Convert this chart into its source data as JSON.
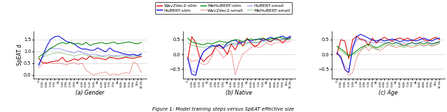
{
  "legend_entries_row1": [
    {
      "label": "Wav2Vec2-slim",
      "color": "#dd0000",
      "alpha": 1.0
    },
    {
      "label": "HuBERT-slim",
      "color": "#0000dd",
      "alpha": 1.0
    },
    {
      "label": "MeHuBERT-slim",
      "color": "#008800",
      "alpha": 1.0
    }
  ],
  "legend_entries_row2": [
    {
      "label": "Wav2Vec2-small",
      "color": "#dd0000",
      "alpha": 0.38
    },
    {
      "label": "HuBERT-small",
      "color": "#0000dd",
      "alpha": 0.38
    },
    {
      "label": "MeHuBERT-small",
      "color": "#008800",
      "alpha": 0.38
    }
  ],
  "xlabel_steps": [
    "0",
    "0.4k",
    "0.8k",
    "1.2k",
    "1.6k",
    "2k",
    "2.4k",
    "2.8k",
    "3.2k",
    "3.6k",
    "4k",
    "4.4k",
    "4.8k",
    "5.2k",
    "5.6k",
    "6k",
    "6.4k",
    "6.8k",
    "7.2k",
    "7.6k",
    "8k",
    "8.4k",
    "8.8k",
    "9.2k",
    "9.6k",
    "10k",
    "10.4k"
  ],
  "panel_titles": [
    "(a) Gender",
    "(b) Native",
    "(c) Age"
  ],
  "figure_caption": "Figure 1: Model training steps versus SpEAT effective size",
  "ylabel": "SpEAT d",
  "panels": {
    "gender": {
      "ylim": [
        -0.15,
        1.85
      ],
      "yticks": [
        0.0,
        0.5,
        1.0,
        1.5
      ],
      "series": {
        "wav2vec2_slim": [
          0.7,
          0.52,
          0.5,
          0.55,
          0.58,
          0.6,
          0.75,
          0.55,
          0.6,
          0.68,
          0.62,
          0.73,
          0.65,
          0.8,
          0.7,
          0.72,
          0.68,
          0.65,
          0.75,
          0.72,
          0.68,
          0.7,
          0.75,
          0.72,
          0.7,
          0.75,
          0.78
        ],
        "hubert_slim": [
          0.4,
          0.8,
          1.2,
          1.5,
          1.62,
          1.65,
          1.55,
          1.42,
          1.38,
          1.32,
          1.18,
          1.1,
          1.1,
          1.05,
          1.05,
          1.15,
          1.05,
          0.98,
          1.15,
          1.02,
          0.98,
          0.92,
          0.88,
          0.85,
          0.88,
          0.82,
          0.9
        ],
        "mehubert_slim": [
          0.75,
          0.88,
          1.0,
          1.12,
          1.22,
          1.32,
          1.38,
          1.32,
          1.38,
          1.3,
          1.35,
          1.28,
          1.38,
          1.25,
          1.32,
          1.35,
          1.38,
          1.32,
          1.35,
          1.4,
          1.32,
          1.35,
          1.38,
          1.4,
          1.35,
          1.32,
          1.38
        ],
        "wav2vec2_small": [
          0.3,
          0.48,
          0.5,
          0.52,
          0.48,
          0.5,
          0.48,
          0.42,
          0.5,
          0.52,
          0.45,
          0.5,
          0.2,
          0.08,
          0.0,
          0.05,
          0.1,
          0.12,
          0.0,
          0.05,
          0.0,
          0.05,
          0.1,
          0.05,
          0.55,
          0.45,
          0.1
        ],
        "hubert_small": [
          0.45,
          0.75,
          0.98,
          1.15,
          1.1,
          1.12,
          1.08,
          1.02,
          0.98,
          0.92,
          1.02,
          0.95,
          0.9,
          0.85,
          0.88,
          0.85,
          0.8,
          0.82,
          0.85,
          0.8,
          0.82,
          0.85,
          0.82,
          0.8,
          0.82,
          0.82,
          0.85
        ],
        "mehubert_small": [
          0.68,
          0.75,
          0.82,
          0.88,
          0.92,
          0.95,
          0.92,
          0.88,
          0.85,
          0.8,
          0.85,
          0.88,
          0.85,
          0.8,
          0.78,
          0.8,
          0.78,
          0.75,
          0.78,
          0.8,
          0.78,
          0.75,
          0.78,
          0.8,
          0.78,
          0.8,
          0.82
        ]
      }
    },
    "native": {
      "ylim": [
        -0.82,
        0.78
      ],
      "yticks": [
        -0.5,
        0.0,
        0.5
      ],
      "series": {
        "wav2vec2_slim": [
          -0.15,
          0.6,
          0.4,
          -0.1,
          -0.25,
          -0.1,
          0.0,
          0.25,
          0.3,
          0.2,
          0.0,
          0.35,
          0.15,
          0.45,
          0.28,
          0.55,
          0.38,
          0.25,
          0.35,
          0.55,
          0.48,
          0.42,
          0.55,
          0.5,
          0.4,
          0.5,
          0.58
        ],
        "hubert_slim": [
          -0.15,
          -0.68,
          -0.72,
          -0.2,
          0.1,
          0.2,
          0.3,
          0.28,
          0.32,
          0.22,
          0.38,
          0.45,
          0.48,
          0.38,
          0.42,
          0.5,
          0.45,
          0.5,
          0.52,
          0.48,
          0.52,
          0.58,
          0.52,
          0.58,
          0.62,
          0.55,
          0.62
        ],
        "mehubert_slim": [
          0.55,
          0.42,
          0.38,
          0.35,
          0.32,
          0.38,
          0.35,
          0.4,
          0.45,
          0.42,
          0.4,
          0.45,
          0.5,
          0.48,
          0.42,
          0.5,
          0.52,
          0.48,
          0.52,
          0.55,
          0.5,
          0.52,
          0.55,
          0.58,
          0.55,
          0.52,
          0.55
        ],
        "wav2vec2_small": [
          -0.1,
          -0.25,
          -0.2,
          -0.28,
          -0.35,
          -0.32,
          -0.1,
          0.22,
          0.08,
          -0.12,
          0.02,
          0.12,
          -0.7,
          -0.28,
          0.02,
          0.12,
          0.22,
          0.32,
          0.22,
          0.3,
          0.38,
          0.32,
          0.38,
          0.42,
          0.38,
          0.42,
          0.45
        ],
        "hubert_small": [
          -0.1,
          -0.55,
          -0.62,
          -0.15,
          0.08,
          0.18,
          0.25,
          0.28,
          0.22,
          0.18,
          0.3,
          0.38,
          0.32,
          0.35,
          0.4,
          0.38,
          0.4,
          0.42,
          0.4,
          0.45,
          0.48,
          0.45,
          0.5,
          0.48,
          0.52,
          0.5,
          0.58
        ],
        "mehubert_small": [
          0.4,
          0.3,
          0.28,
          0.25,
          0.22,
          0.28,
          0.25,
          0.3,
          0.35,
          0.32,
          0.3,
          0.35,
          0.38,
          0.35,
          0.3,
          0.38,
          0.4,
          0.38,
          0.42,
          0.45,
          0.42,
          0.45,
          0.5,
          0.48,
          0.5,
          0.52,
          0.5
        ]
      }
    },
    "age": {
      "ylim": [
        -0.82,
        0.78
      ],
      "yticks": [
        -0.5,
        0.0,
        0.5
      ],
      "series": {
        "wav2vec2_slim": [
          0.0,
          0.5,
          0.45,
          -0.15,
          0.5,
          0.62,
          0.5,
          0.48,
          0.3,
          0.55,
          0.38,
          0.5,
          0.58,
          0.5,
          0.45,
          0.52,
          0.55,
          0.5,
          0.55,
          0.45,
          0.52,
          0.58,
          0.5,
          0.45,
          0.52,
          0.58,
          0.5
        ],
        "hubert_slim": [
          0.05,
          -0.12,
          -0.52,
          -0.62,
          0.25,
          0.6,
          0.68,
          0.62,
          0.55,
          0.48,
          0.45,
          0.5,
          0.45,
          0.48,
          0.52,
          0.48,
          0.42,
          0.48,
          0.45,
          0.5,
          0.45,
          0.5,
          0.55,
          0.5,
          0.45,
          0.52,
          0.55
        ],
        "mehubert_slim": [
          0.28,
          0.18,
          0.08,
          -0.05,
          0.02,
          0.12,
          0.22,
          0.28,
          0.35,
          0.28,
          0.22,
          0.28,
          0.35,
          0.4,
          0.35,
          0.4,
          0.35,
          0.28,
          0.35,
          0.4,
          0.35,
          0.4,
          0.35,
          0.4,
          0.35,
          0.38,
          0.42
        ],
        "wav2vec2_small": [
          0.0,
          -0.05,
          -0.5,
          -0.72,
          -0.62,
          -0.12,
          0.12,
          0.28,
          0.12,
          0.25,
          0.18,
          0.12,
          0.22,
          0.35,
          0.28,
          0.22,
          0.28,
          0.35,
          0.28,
          0.22,
          0.28,
          0.35,
          0.28,
          0.35,
          0.28,
          0.32,
          0.38
        ],
        "hubert_small": [
          0.05,
          -0.08,
          -0.42,
          -0.52,
          0.18,
          0.48,
          0.55,
          0.48,
          0.42,
          0.38,
          0.4,
          0.42,
          0.38,
          0.4,
          0.45,
          0.4,
          0.35,
          0.4,
          0.35,
          0.4,
          0.35,
          0.4,
          0.45,
          0.4,
          0.35,
          0.4,
          0.45
        ],
        "mehubert_small": [
          0.22,
          0.12,
          0.02,
          -0.08,
          -0.02,
          0.05,
          0.15,
          0.22,
          0.28,
          0.22,
          0.15,
          0.22,
          0.28,
          0.32,
          0.28,
          0.32,
          0.28,
          0.22,
          0.28,
          0.32,
          0.28,
          0.32,
          0.28,
          0.32,
          0.28,
          0.32,
          0.38
        ]
      }
    }
  }
}
